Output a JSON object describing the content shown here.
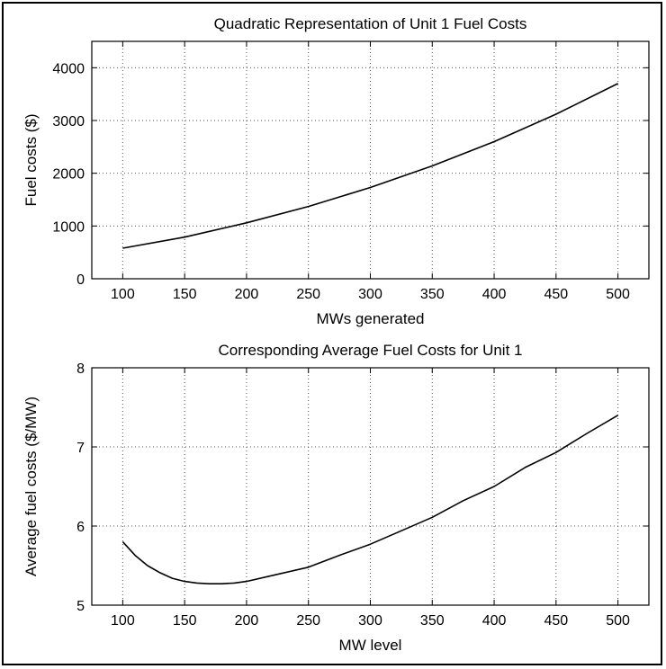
{
  "chart_data": [
    {
      "type": "line",
      "title": "Quadratic Representation of Unit 1 Fuel Costs",
      "xlabel": "MWs generated",
      "ylabel": "Fuel costs ($)",
      "xlim": [
        75,
        525
      ],
      "ylim": [
        0,
        4500
      ],
      "xticks": [
        "100",
        "150",
        "200",
        "250",
        "300",
        "350",
        "400",
        "450",
        "500"
      ],
      "yticks": [
        "0",
        "1000",
        "2000",
        "3000",
        "4000"
      ],
      "grid": true,
      "x": [
        100,
        150,
        200,
        250,
        300,
        350,
        400,
        450,
        500
      ],
      "series": [
        {
          "values": [
            580,
            790,
            1060,
            1370,
            1730,
            2140,
            2600,
            3120,
            3700
          ]
        }
      ]
    },
    {
      "type": "line",
      "title": "Corresponding Average Fuel Costs for Unit 1",
      "xlabel": "MW level",
      "ylabel": "Average fuel costs ($/MW)",
      "xlim": [
        75,
        525
      ],
      "ylim": [
        5,
        8
      ],
      "xticks": [
        "100",
        "150",
        "200",
        "250",
        "300",
        "350",
        "400",
        "450",
        "500"
      ],
      "yticks": [
        "5",
        "6",
        "7",
        "8"
      ],
      "grid": true,
      "x": [
        100,
        110,
        120,
        130,
        140,
        150,
        160,
        170,
        180,
        190,
        200,
        225,
        250,
        275,
        300,
        325,
        350,
        375,
        400,
        425,
        450,
        475,
        500
      ],
      "series": [
        {
          "values": [
            5.8,
            5.63,
            5.5,
            5.41,
            5.34,
            5.3,
            5.28,
            5.27,
            5.27,
            5.28,
            5.3,
            5.39,
            5.48,
            5.63,
            5.77,
            5.94,
            6.11,
            6.32,
            6.5,
            6.74,
            6.93,
            7.17,
            7.4
          ]
        }
      ]
    }
  ]
}
